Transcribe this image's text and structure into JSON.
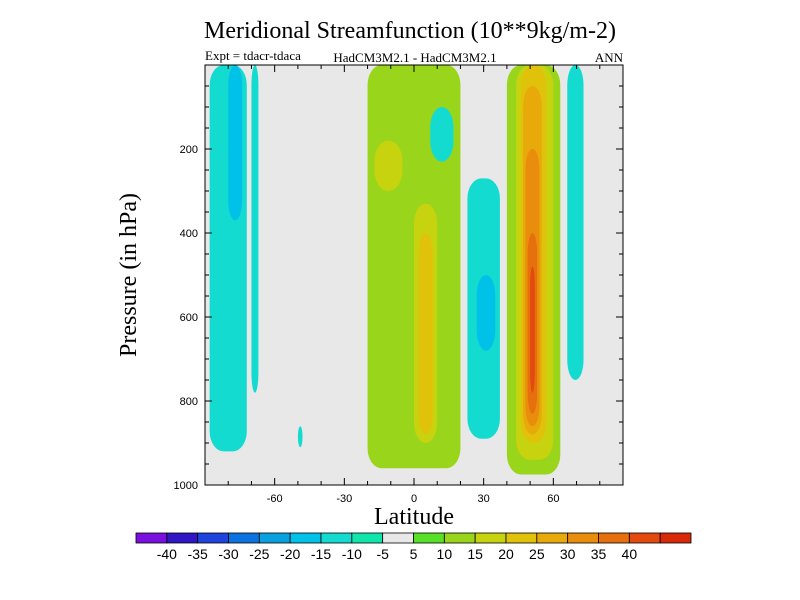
{
  "chart_data": {
    "type": "contour",
    "title": "Meridional Streamfunction (10**9kg/m-2)",
    "subtitle_left": "Expt = tdacr-tdaca",
    "subtitle_center": "HadCM3M2.1 - HadCM3M2.1",
    "subtitle_right": "ANN",
    "xlabel": "Latitude",
    "ylabel": "Pressure (in hPa)",
    "xlim": [
      -90,
      90
    ],
    "ylim": [
      1000,
      0
    ],
    "xticks": [
      -60,
      -30,
      0,
      30,
      60
    ],
    "xtick_labels": [
      "-60",
      "-30",
      "0",
      "30",
      "60"
    ],
    "yticks": [
      200,
      400,
      600,
      800,
      1000
    ],
    "ytick_labels": [
      "200",
      "400",
      "600",
      "800",
      "1000"
    ],
    "colorbar": {
      "colors": [
        "#7a10dd",
        "#3016c4",
        "#1f44dd",
        "#0a73e0",
        "#08a1dd",
        "#00c2e8",
        "#14dbd0",
        "#10e6ac",
        "#e8e8e8",
        "#58e027",
        "#99d51b",
        "#c8d310",
        "#e1c20b",
        "#e8a90a",
        "#e88e0c",
        "#e66f0e",
        "#e34a0e",
        "#d82a08"
      ],
      "labels": [
        "-40",
        "-35",
        "-30",
        "-25",
        "-20",
        "-15",
        "-10",
        "-5",
        "5",
        "10",
        "15",
        "20",
        "25",
        "30",
        "35",
        "40"
      ]
    },
    "regions": [
      {
        "name": "southern-cell-outer",
        "level": "-10",
        "lat_range": [
          -88,
          -72
        ],
        "p_range": [
          0,
          920
        ]
      },
      {
        "name": "southern-cell-core",
        "level": "-15",
        "lat_range": [
          -80,
          -74
        ],
        "p_range": [
          0,
          370
        ]
      },
      {
        "name": "southern-cell-strip",
        "level": "-10",
        "lat_range": [
          -70,
          -67
        ],
        "p_range": [
          0,
          780
        ]
      },
      {
        "name": "small-patch-south",
        "level": "-10",
        "lat_range": [
          -50,
          -48
        ],
        "p_range": [
          860,
          910
        ]
      },
      {
        "name": "tropical-cell-outer",
        "level": "10",
        "lat_range": [
          -20,
          20
        ],
        "p_range": [
          0,
          960
        ]
      },
      {
        "name": "tropical-cell-upper-core",
        "level": "15",
        "lat_range": [
          -17,
          -5
        ],
        "p_range": [
          180,
          300
        ]
      },
      {
        "name": "tropical-cell-lower-core",
        "level": "15",
        "lat_range": [
          0,
          10
        ],
        "p_range": [
          330,
          900
        ]
      },
      {
        "name": "tropical-cell-max",
        "level": "20",
        "lat_range": [
          2,
          8
        ],
        "p_range": [
          400,
          880
        ]
      },
      {
        "name": "mid-upper-patch",
        "level": "-10",
        "lat_range": [
          7,
          17
        ],
        "p_range": [
          100,
          230
        ]
      },
      {
        "name": "subtropical-neg-cell",
        "level": "-10",
        "lat_range": [
          23,
          37
        ],
        "p_range": [
          270,
          890
        ]
      },
      {
        "name": "subtropical-neg-core",
        "level": "-15",
        "lat_range": [
          27,
          35
        ],
        "p_range": [
          500,
          680
        ]
      },
      {
        "name": "northern-cell-outer",
        "level": "10",
        "lat_range": [
          40,
          63
        ],
        "p_range": [
          0,
          975
        ]
      },
      {
        "name": "northern-cell-15",
        "level": "15",
        "lat_range": [
          44,
          60
        ],
        "p_range": [
          0,
          940
        ]
      },
      {
        "name": "northern-cell-20",
        "level": "20",
        "lat_range": [
          46,
          57
        ],
        "p_range": [
          0,
          900
        ]
      },
      {
        "name": "northern-cell-25",
        "level": "25",
        "lat_range": [
          47,
          55
        ],
        "p_range": [
          50,
          880
        ]
      },
      {
        "name": "northern-cell-30",
        "level": "30",
        "lat_range": [
          48,
          54
        ],
        "p_range": [
          200,
          860
        ]
      },
      {
        "name": "northern-cell-35",
        "level": "35",
        "lat_range": [
          49,
          53
        ],
        "p_range": [
          400,
          830
        ]
      },
      {
        "name": "northern-cell-40",
        "level": "40",
        "lat_range": [
          50,
          52
        ],
        "p_range": [
          480,
          780
        ]
      },
      {
        "name": "polar-strip",
        "level": "-10",
        "lat_range": [
          66,
          73
        ],
        "p_range": [
          0,
          750
        ]
      }
    ]
  }
}
